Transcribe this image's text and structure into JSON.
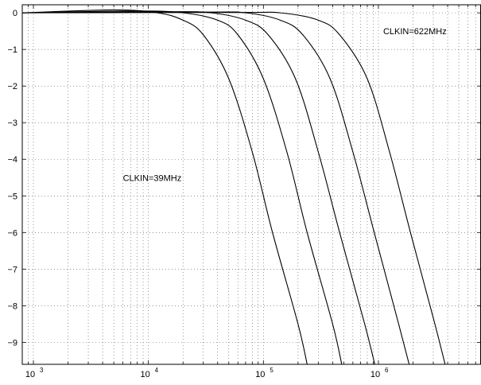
{
  "chart_data": {
    "type": "line",
    "title": "",
    "xlabel": "",
    "ylabel": "",
    "x_scale": "log",
    "xlim": [
      800,
      7800000
    ],
    "ylim": [
      -9.6,
      0.22
    ],
    "grid": true,
    "line_color": "#000000",
    "x_tick_labels": [
      {
        "value": 1000,
        "base": "10",
        "exp": "3"
      },
      {
        "value": 10000,
        "base": "10",
        "exp": "4"
      },
      {
        "value": 100000,
        "base": "10",
        "exp": "5"
      },
      {
        "value": 1000000,
        "base": "10",
        "exp": "6"
      }
    ],
    "y_ticks": [
      0,
      -1,
      -2,
      -3,
      -4,
      -5,
      -6,
      -7,
      -8,
      -9
    ],
    "y_tick_labels": [
      "0",
      "−1",
      "−2",
      "−3",
      "−4",
      "−5",
      "−6",
      "−7",
      "−8",
      "−9"
    ],
    "series": [
      {
        "values": [
          [
            800,
            0
          ],
          [
            5000,
            0.08
          ],
          [
            12000,
            0
          ],
          [
            20000,
            -0.2
          ],
          [
            30000,
            -0.6
          ],
          [
            50000,
            -1.8
          ],
          [
            80000,
            -3.8
          ],
          [
            120000,
            -6.0
          ],
          [
            200000,
            -8.5
          ],
          [
            240000,
            -9.6
          ]
        ]
      },
      {
        "values": [
          [
            800,
            0
          ],
          [
            8000,
            0.05
          ],
          [
            20000,
            0
          ],
          [
            40000,
            -0.2
          ],
          [
            60000,
            -0.6
          ],
          [
            100000,
            -1.8
          ],
          [
            160000,
            -3.8
          ],
          [
            240000,
            -6.0
          ],
          [
            400000,
            -8.5
          ],
          [
            480000,
            -9.6
          ]
        ]
      },
      {
        "values": [
          [
            800,
            0
          ],
          [
            15000,
            0.03
          ],
          [
            35000,
            0
          ],
          [
            70000,
            -0.2
          ],
          [
            110000,
            -0.6
          ],
          [
            190000,
            -1.8
          ],
          [
            300000,
            -3.8
          ],
          [
            460000,
            -6.0
          ],
          [
            760000,
            -8.5
          ],
          [
            930000,
            -9.6
          ]
        ]
      },
      {
        "values": [
          [
            800,
            0
          ],
          [
            30000,
            0.02
          ],
          [
            70000,
            0
          ],
          [
            140000,
            -0.2
          ],
          [
            220000,
            -0.6
          ],
          [
            380000,
            -1.8
          ],
          [
            600000,
            -3.8
          ],
          [
            920000,
            -6.0
          ],
          [
            1500000,
            -8.5
          ],
          [
            1850000,
            -9.6
          ]
        ]
      },
      {
        "values": [
          [
            800,
            0
          ],
          [
            60000,
            0.01
          ],
          [
            140000,
            0
          ],
          [
            300000,
            -0.2
          ],
          [
            460000,
            -0.6
          ],
          [
            800000,
            -1.8
          ],
          [
            1250000,
            -3.8
          ],
          [
            1900000,
            -6.0
          ],
          [
            3100000,
            -8.5
          ],
          [
            3800000,
            -9.6
          ]
        ]
      }
    ],
    "annotations": [
      {
        "text": "CLKIN=622MHz",
        "x": 1100000,
        "y": -0.5
      },
      {
        "text": "CLKIN=39MHz",
        "x": 6000,
        "y": -4.5
      }
    ]
  }
}
